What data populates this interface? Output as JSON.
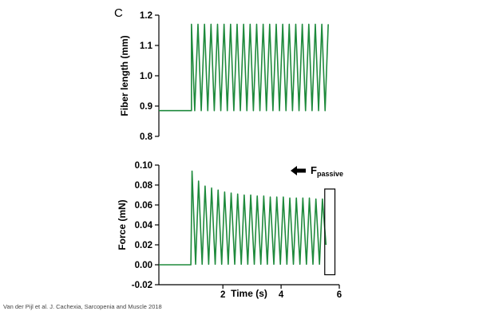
{
  "panel_label": "C",
  "citation": "Van der Pijl et al. J. Cachexia, Sarcopenia and Muscle 2018",
  "colors": {
    "trace": "#1e8a3c",
    "axis": "#000000"
  },
  "chart_data": [
    {
      "type": "line",
      "title": "",
      "xlabel": "",
      "ylabel": "Fiber length (mm)",
      "xlim": [
        -0.2,
        6.0
      ],
      "ylim": [
        0.8,
        1.2
      ],
      "y_ticks": [
        0.8,
        0.9,
        1.0,
        1.1,
        1.2
      ],
      "y_tick_labels": [
        "0.8",
        "0.9",
        "1.0",
        "1.1",
        "1.2"
      ],
      "x_ticks": [],
      "grid": false,
      "series": [
        {
          "baseline": 0.885,
          "peak": 1.17,
          "onset_time": 0.92,
          "cycle_count": 21,
          "period": 0.224,
          "end_time": 5.62
        }
      ]
    },
    {
      "type": "line",
      "title": "",
      "xlabel": "Time (s)",
      "ylabel": "Force (mN)",
      "xlim": [
        -0.2,
        6.0
      ],
      "ylim": [
        -0.02,
        0.1
      ],
      "y_ticks": [
        -0.02,
        0.0,
        0.02,
        0.04,
        0.06,
        0.08,
        0.1
      ],
      "y_tick_labels": [
        "-0.02",
        "0.00",
        "0.02",
        "0.04",
        "0.06",
        "0.08",
        "0.10"
      ],
      "x_ticks": [
        2,
        4,
        6
      ],
      "x_tick_labels": [
        "2",
        "4",
        "6"
      ],
      "grid": false,
      "series": [
        {
          "baseline": 0.0,
          "onset_time": 0.92,
          "period": 0.224,
          "end_time": 5.62,
          "peak_values": [
            0.094,
            0.084,
            0.079,
            0.077,
            0.075,
            0.073,
            0.072,
            0.071,
            0.07,
            0.07,
            0.069,
            0.069,
            0.068,
            0.068,
            0.068,
            0.067,
            0.067,
            0.067,
            0.067,
            0.066,
            0.066
          ]
        }
      ],
      "annotation": {
        "label": "F",
        "subscript": "passive",
        "arrow_direction": "left",
        "highlight_box_x": [
          5.5,
          5.85
        ],
        "highlight_box_y": [
          -0.01,
          0.076
        ]
      }
    }
  ]
}
